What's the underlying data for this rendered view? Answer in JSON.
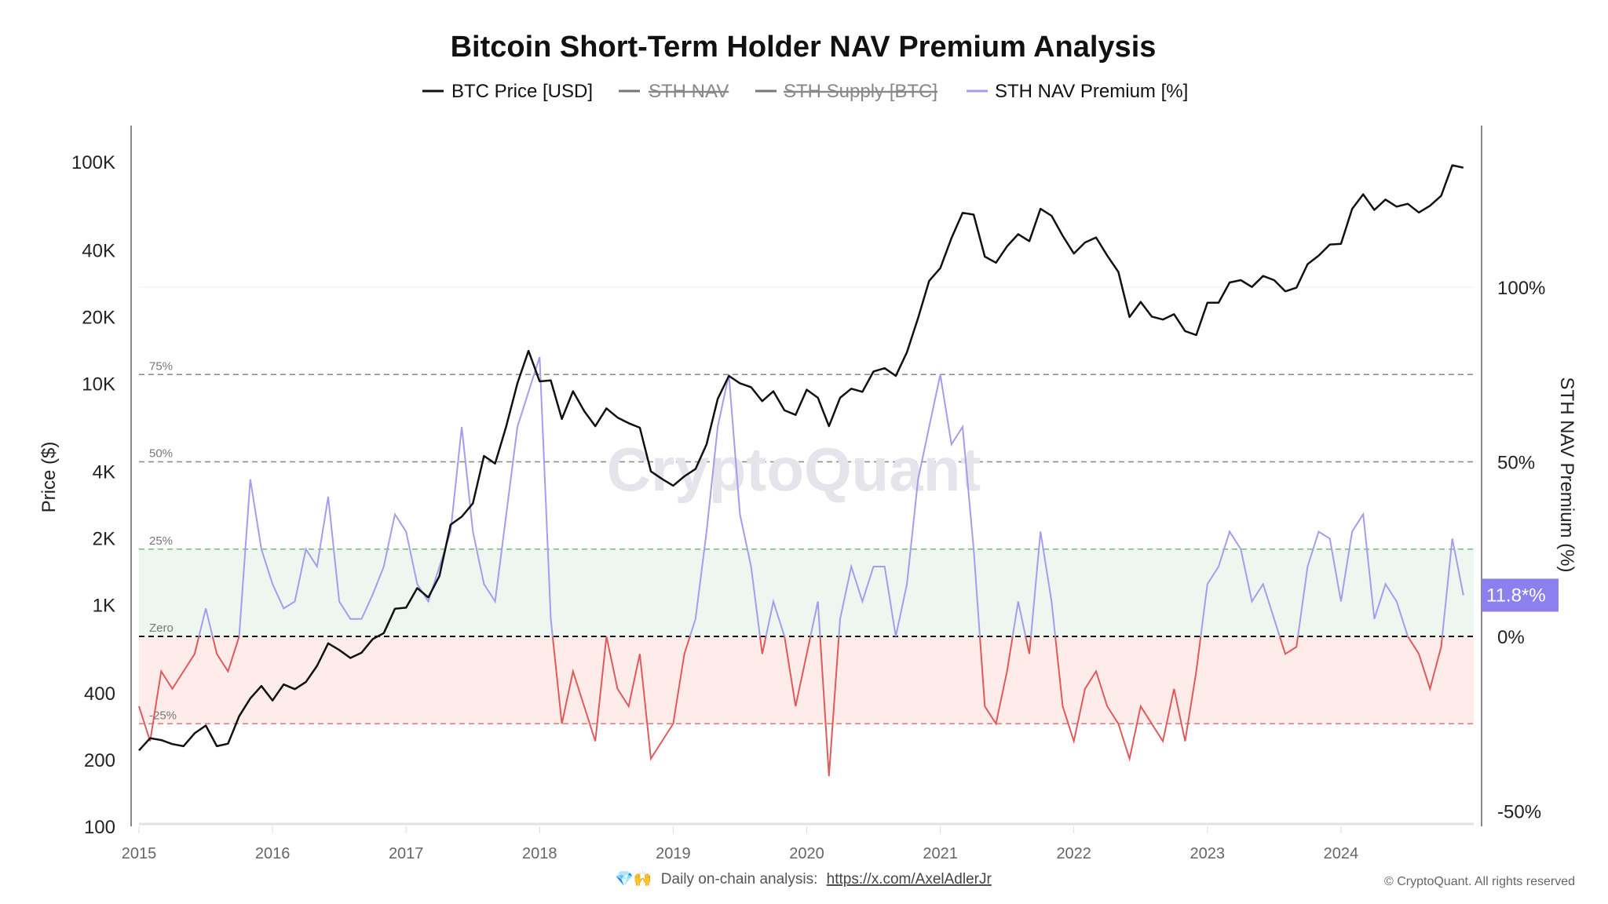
{
  "title": "Bitcoin Short-Term Holder NAV Premium Analysis",
  "legend": [
    {
      "label": "BTC Price [USD]",
      "color": "#111111",
      "hidden": false
    },
    {
      "label": "STH NAV",
      "color": "#777777",
      "hidden": true
    },
    {
      "label": "STH Supply [BTC]",
      "color": "#777777",
      "hidden": true
    },
    {
      "label": "STH NAV Premium [%]",
      "color": "#a59cef",
      "hidden": false
    }
  ],
  "watermark": "CryptoQuant",
  "badge": {
    "label": "11.8*%",
    "color": "#8b80ee"
  },
  "footer": {
    "emoji": "💎🙌",
    "text": "Daily on-chain analysis:",
    "link": "https://x.com/AxelAdlerJr",
    "copyright": "© CryptoQuant. All rights reserved"
  },
  "chart_data": {
    "type": "line",
    "title": "Bitcoin Short-Term Holder NAV Premium Analysis",
    "ylabel_left": "Price ($)",
    "ylabel_right": "STH NAV Premium (%)",
    "left_axis": {
      "scale": "log",
      "range": [
        100,
        100000
      ],
      "ticks": [
        "100K",
        "40K",
        "20K",
        "10K",
        "4K",
        "2K",
        "1K",
        "400",
        "200",
        "100"
      ],
      "tick_values": [
        100000,
        40000,
        20000,
        10000,
        4000,
        2000,
        1000,
        400,
        200,
        100
      ]
    },
    "right_axis": {
      "scale": "linear",
      "range": [
        -50,
        110
      ],
      "ticks": [
        "100%",
        "50%",
        "0%",
        "-50%"
      ],
      "tick_values": [
        100,
        50,
        0,
        -50
      ]
    },
    "x_ticks": [
      "2015",
      "2016",
      "2017",
      "2018",
      "2019",
      "2020",
      "2021",
      "2022",
      "2023",
      "2024"
    ],
    "reference_lines": [
      {
        "value": 75,
        "label": "75%",
        "color": "#888888"
      },
      {
        "value": 50,
        "label": "50%",
        "color": "#888888"
      },
      {
        "value": 25,
        "label": "25%",
        "color": "#6fbf7a"
      },
      {
        "value": 0,
        "label": "Zero",
        "color": "#111111"
      },
      {
        "value": -25,
        "label": "-25%",
        "color": "#e07a7a"
      }
    ],
    "bands": [
      {
        "from": 0,
        "to": 25,
        "color": "#edf7ef"
      },
      {
        "from": -25,
        "to": 0,
        "color": "#fdece9"
      }
    ],
    "x_start": "2015-01",
    "x_step": "month",
    "series": [
      {
        "name": "BTC Price [USD]",
        "axis": "left",
        "color": "#111111",
        "values": [
          220,
          250,
          245,
          235,
          230,
          263,
          285,
          230,
          236,
          314,
          378,
          430,
          370,
          437,
          416,
          448,
          530,
          670,
          625,
          575,
          608,
          700,
          745,
          960,
          970,
          1190,
          1080,
          1350,
          2300,
          2500,
          2870,
          4700,
          4340,
          6400,
          10000,
          14000,
          10200,
          10300,
          6900,
          9200,
          7500,
          6400,
          7700,
          7000,
          6600,
          6300,
          4000,
          3700,
          3450,
          3800,
          4100,
          5300,
          8500,
          10800,
          10000,
          9600,
          8300,
          9200,
          7550,
          7200,
          9350,
          8600,
          6400,
          8600,
          9450,
          9150,
          11300,
          11700,
          10800,
          13800,
          19700,
          29000,
          33100,
          45200,
          58800,
          57700,
          37300,
          35000,
          41500,
          47100,
          43800,
          61300,
          57000,
          46300,
          38500,
          43200,
          45500,
          37700,
          31800,
          19900,
          23300,
          20000,
          19400,
          20500,
          17200,
          16500,
          23100,
          23100,
          28500,
          29200,
          27200,
          30500,
          29200,
          26000,
          27000,
          34500,
          37700,
          42300,
          42600,
          61200,
          71300,
          60600,
          67500,
          62700,
          64600,
          59000,
          63300,
          70200,
          96400,
          94000
        ]
      },
      {
        "name": "STH NAV Premium [%]",
        "axis": "right",
        "color": "#a59cef",
        "negative_color": "#e05a5a",
        "values": [
          -20,
          -30,
          -10,
          -15,
          -10,
          -5,
          8,
          -5,
          -10,
          0,
          45,
          25,
          15,
          8,
          10,
          25,
          20,
          40,
          10,
          5,
          5,
          12,
          20,
          35,
          30,
          15,
          10,
          20,
          30,
          60,
          30,
          15,
          10,
          35,
          60,
          70,
          80,
          5,
          -25,
          -10,
          -20,
          -30,
          0,
          -15,
          -20,
          -5,
          -35,
          -30,
          -25,
          -5,
          5,
          30,
          60,
          75,
          35,
          20,
          -5,
          10,
          0,
          -20,
          -5,
          10,
          -40,
          5,
          20,
          10,
          20,
          20,
          0,
          15,
          45,
          60,
          75,
          55,
          60,
          25,
          -20,
          -25,
          -10,
          10,
          -5,
          30,
          10,
          -20,
          -30,
          -15,
          -10,
          -20,
          -25,
          -35,
          -20,
          -25,
          -30,
          -15,
          -30,
          -10,
          15,
          20,
          30,
          25,
          10,
          15,
          5,
          -5,
          -3,
          20,
          30,
          28,
          10,
          30,
          35,
          5,
          15,
          10,
          0,
          -5,
          -15,
          -3,
          28,
          11.8
        ]
      }
    ]
  }
}
